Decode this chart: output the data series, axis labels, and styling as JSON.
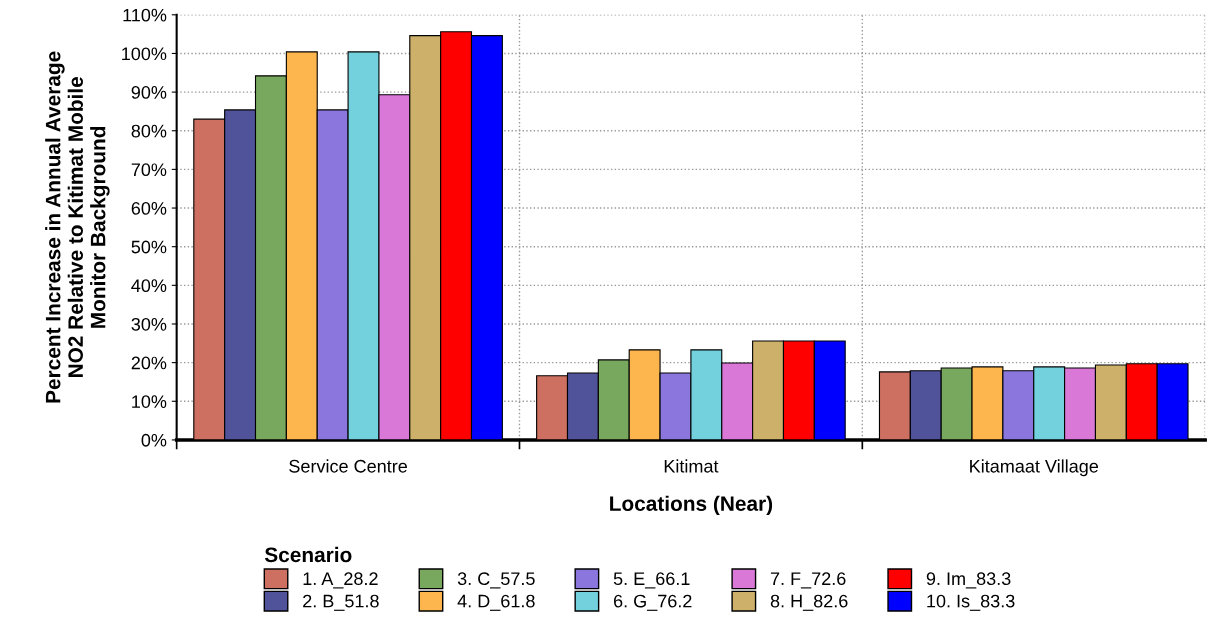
{
  "chart_data": {
    "type": "bar",
    "xlabel": "Locations (Near)",
    "ylabel": "Percent Increase in Annual Average\nNO2 Relative to Kitimat Mobile\nMonitor Background",
    "categories": [
      "Service Centre",
      "Kitimat",
      "Kitamaat Village"
    ],
    "series": [
      {
        "name": "1. A_28.2",
        "color": "#cd6f61",
        "values": [
          83,
          16.6,
          17.6
        ]
      },
      {
        "name": "2. B_51.8",
        "color": "#50529a",
        "values": [
          85.4,
          17.3,
          17.9
        ]
      },
      {
        "name": "3. C_57.5",
        "color": "#78a85e",
        "values": [
          94.2,
          20.7,
          18.6
        ]
      },
      {
        "name": "4. D_61.8",
        "color": "#fdb64e",
        "values": [
          100.4,
          23.3,
          18.9
        ]
      },
      {
        "name": "5. E_66.1",
        "color": "#8a76dd",
        "values": [
          85.4,
          17.3,
          17.9
        ]
      },
      {
        "name": "6. G_76.2",
        "color": "#72d1dc",
        "values": [
          100.4,
          23.3,
          18.9
        ]
      },
      {
        "name": "7. F_72.6",
        "color": "#da78d8",
        "values": [
          89.3,
          19.9,
          18.6
        ]
      },
      {
        "name": "8. H_82.6",
        "color": "#cdb06a",
        "values": [
          104.6,
          25.6,
          19.4
        ]
      },
      {
        "name": "9. Im_83.3",
        "color": "#ff0000",
        "values": [
          105.6,
          25.6,
          19.7
        ]
      },
      {
        "name": "10. Is_83.3",
        "color": "#0000ff",
        "values": [
          104.6,
          25.6,
          19.7
        ]
      }
    ],
    "legend_title": "Scenario",
    "legend": "bottom",
    "grid": true,
    "ylim": [
      0,
      110
    ],
    "yticks": [
      {
        "value": 0,
        "label": "0%"
      },
      {
        "value": 10,
        "label": "10%"
      },
      {
        "value": 20,
        "label": "20%"
      },
      {
        "value": 30,
        "label": "30%"
      },
      {
        "value": 40,
        "label": "40%"
      },
      {
        "value": 50,
        "label": "50%"
      },
      {
        "value": 60,
        "label": "60%"
      },
      {
        "value": 70,
        "label": "70%"
      },
      {
        "value": 80,
        "label": "80%"
      },
      {
        "value": 90,
        "label": "90%"
      },
      {
        "value": 100,
        "label": "100%"
      },
      {
        "value": 110,
        "label": "110%"
      }
    ]
  }
}
